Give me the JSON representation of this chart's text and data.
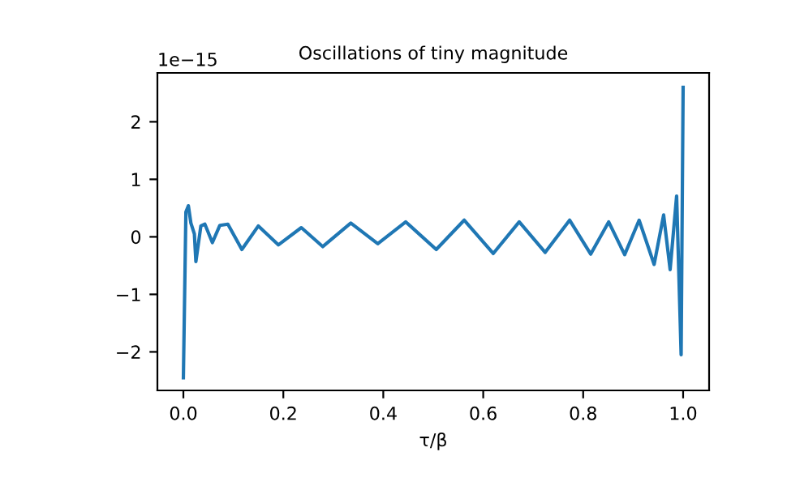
{
  "chart_data": {
    "type": "line",
    "title": "Oscillations of tiny magnitude",
    "xlabel": "τ/β",
    "annotations": [
      "1e−15"
    ],
    "series": [
      {
        "color": "#1f77b4",
        "x": [
          0,
          0.005,
          0.01,
          0.015,
          0.022,
          0.025,
          0.035,
          0.043,
          0.058,
          0.073,
          0.089,
          0.117,
          0.15,
          0.19,
          0.236,
          0.279,
          0.335,
          0.389,
          0.445,
          0.506,
          0.562,
          0.62,
          0.672,
          0.724,
          0.773,
          0.815,
          0.851,
          0.883,
          0.912,
          0.942,
          0.961,
          0.974,
          0.987,
          0.996,
          1.0
        ],
        "values": [
          -2.45,
          0.43,
          0.54,
          0.24,
          0.05,
          -0.43,
          0.19,
          0.22,
          -0.1,
          0.2,
          0.22,
          -0.22,
          0.19,
          -0.14,
          0.16,
          -0.17,
          0.24,
          -0.12,
          0.26,
          -0.22,
          0.29,
          -0.29,
          0.26,
          -0.27,
          0.29,
          -0.3,
          0.26,
          -0.31,
          0.29,
          -0.48,
          0.38,
          -0.57,
          0.71,
          -2.05,
          2.6
        ]
      }
    ],
    "xlim": [
      -0.052,
      1.052
    ],
    "ylim": [
      -2.67,
      2.85
    ],
    "xticks": [
      {
        "value": 0,
        "label": "0.0"
      },
      {
        "value": 0.2,
        "label": "0.2"
      },
      {
        "value": 0.4,
        "label": "0.4"
      },
      {
        "value": 0.6,
        "label": "0.6"
      },
      {
        "value": 0.8,
        "label": "0.8"
      },
      {
        "value": 1,
        "label": "1.0"
      }
    ],
    "yticks": [
      {
        "value": -2,
        "label": "−2"
      },
      {
        "value": -1,
        "label": "−1"
      },
      0,
      1,
      2
    ],
    "grid": false,
    "legend": false
  }
}
